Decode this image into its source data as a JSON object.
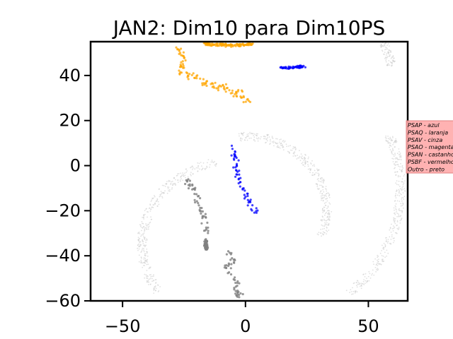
{
  "chart_data": {
    "type": "scatter",
    "title": "JAN2: Dim10 para Dim10PS",
    "xlabel": "",
    "ylabel": "",
    "xlim": [
      -63,
      66
    ],
    "ylim": [
      -60,
      55
    ],
    "xticks": [
      -50,
      0,
      50
    ],
    "xtick_labels": [
      "−50",
      "0",
      "50"
    ],
    "yticks": [
      40,
      20,
      0,
      -20,
      -40,
      -60
    ],
    "ytick_labels": [
      "40",
      "20",
      "0",
      "−20",
      "−40",
      "−60"
    ],
    "grid": false,
    "legend": {
      "placement": "right",
      "background": "#ffaaaa",
      "entries": [
        "PSAP - azul",
        "PSAQ - laranja",
        "PSAV - cinza",
        "PSAO - magenta",
        "PSAN - castanho",
        "PSBF - vermelho",
        "Outro - preto"
      ]
    },
    "series": [
      {
        "color": "#c8c8c8",
        "opacity": 0.55,
        "size": 0.9,
        "count": 1400,
        "clusters": [
          {
            "kind": "arc",
            "cx": -5,
            "cy": -35,
            "r_min": 35,
            "r_max": 39,
            "a_from": 100,
            "a_to": 215
          },
          {
            "kind": "arc",
            "cx": -7,
            "cy": 30,
            "r_min": 66,
            "r_max": 70,
            "a_from": 12,
            "a_to": 58
          },
          {
            "kind": "arc",
            "cx": 0,
            "cy": -20,
            "r_min": 31,
            "r_max": 35,
            "a_from": -20,
            "a_to": 95
          },
          {
            "kind": "arc",
            "cx": 0,
            "cy": -10,
            "r_min": 61,
            "r_max": 65,
            "a_from": -48,
            "a_to": 22
          }
        ]
      },
      {
        "color": "#0000ff",
        "opacity": 0.75,
        "size": 1.6,
        "count": 120,
        "clusters": [
          {
            "kind": "path",
            "points": [
              [
                -5.5,
                9
              ],
              [
                -4,
                2
              ],
              [
                -3,
                -5
              ],
              [
                -1,
                -11
              ],
              [
                2,
                -16
              ],
              [
                4.5,
                -21
              ]
            ],
            "jitter": 1.2
          },
          {
            "kind": "path",
            "points": [
              [
                14,
                43.5
              ],
              [
                20,
                43.5
              ],
              [
                24,
                44
              ]
            ],
            "jitter": 0.5
          }
        ]
      },
      {
        "color": "#ffa500",
        "opacity": 0.75,
        "size": 1.6,
        "count": 210,
        "clusters": [
          {
            "kind": "path",
            "points": [
              [
                -27,
                52
              ],
              [
                -25,
                47
              ],
              [
                -26,
                42
              ],
              [
                -22,
                40
              ],
              [
                -17,
                37
              ],
              [
                -10,
                35
              ],
              [
                -5,
                33
              ],
              [
                1,
                29
              ]
            ],
            "jitter": 1.4
          },
          {
            "kind": "path",
            "points": [
              [
                -17,
                54
              ],
              [
                -10,
                53.5
              ],
              [
                -3,
                53.5
              ],
              [
                3,
                54
              ]
            ],
            "jitter": 0.6
          }
        ]
      },
      {
        "color": "#808080",
        "opacity": 0.8,
        "size": 1.6,
        "count": 150,
        "clusters": [
          {
            "kind": "path",
            "points": [
              [
                -24,
                -6
              ],
              [
                -21,
                -11
              ],
              [
                -19,
                -18
              ],
              [
                -17,
                -24
              ],
              [
                -15,
                -30
              ]
            ],
            "jitter": 1.3
          },
          {
            "kind": "path",
            "points": [
              [
                -16,
                -33
              ],
              [
                -16,
                -37
              ]
            ],
            "jitter": 0.6
          },
          {
            "kind": "path",
            "points": [
              [
                -7,
                -38
              ],
              [
                -5,
                -43
              ],
              [
                -8,
                -45
              ],
              [
                -5,
                -50
              ],
              [
                -4,
                -54
              ],
              [
                -2,
                -59
              ]
            ],
            "jitter": 1.3
          }
        ]
      }
    ]
  }
}
